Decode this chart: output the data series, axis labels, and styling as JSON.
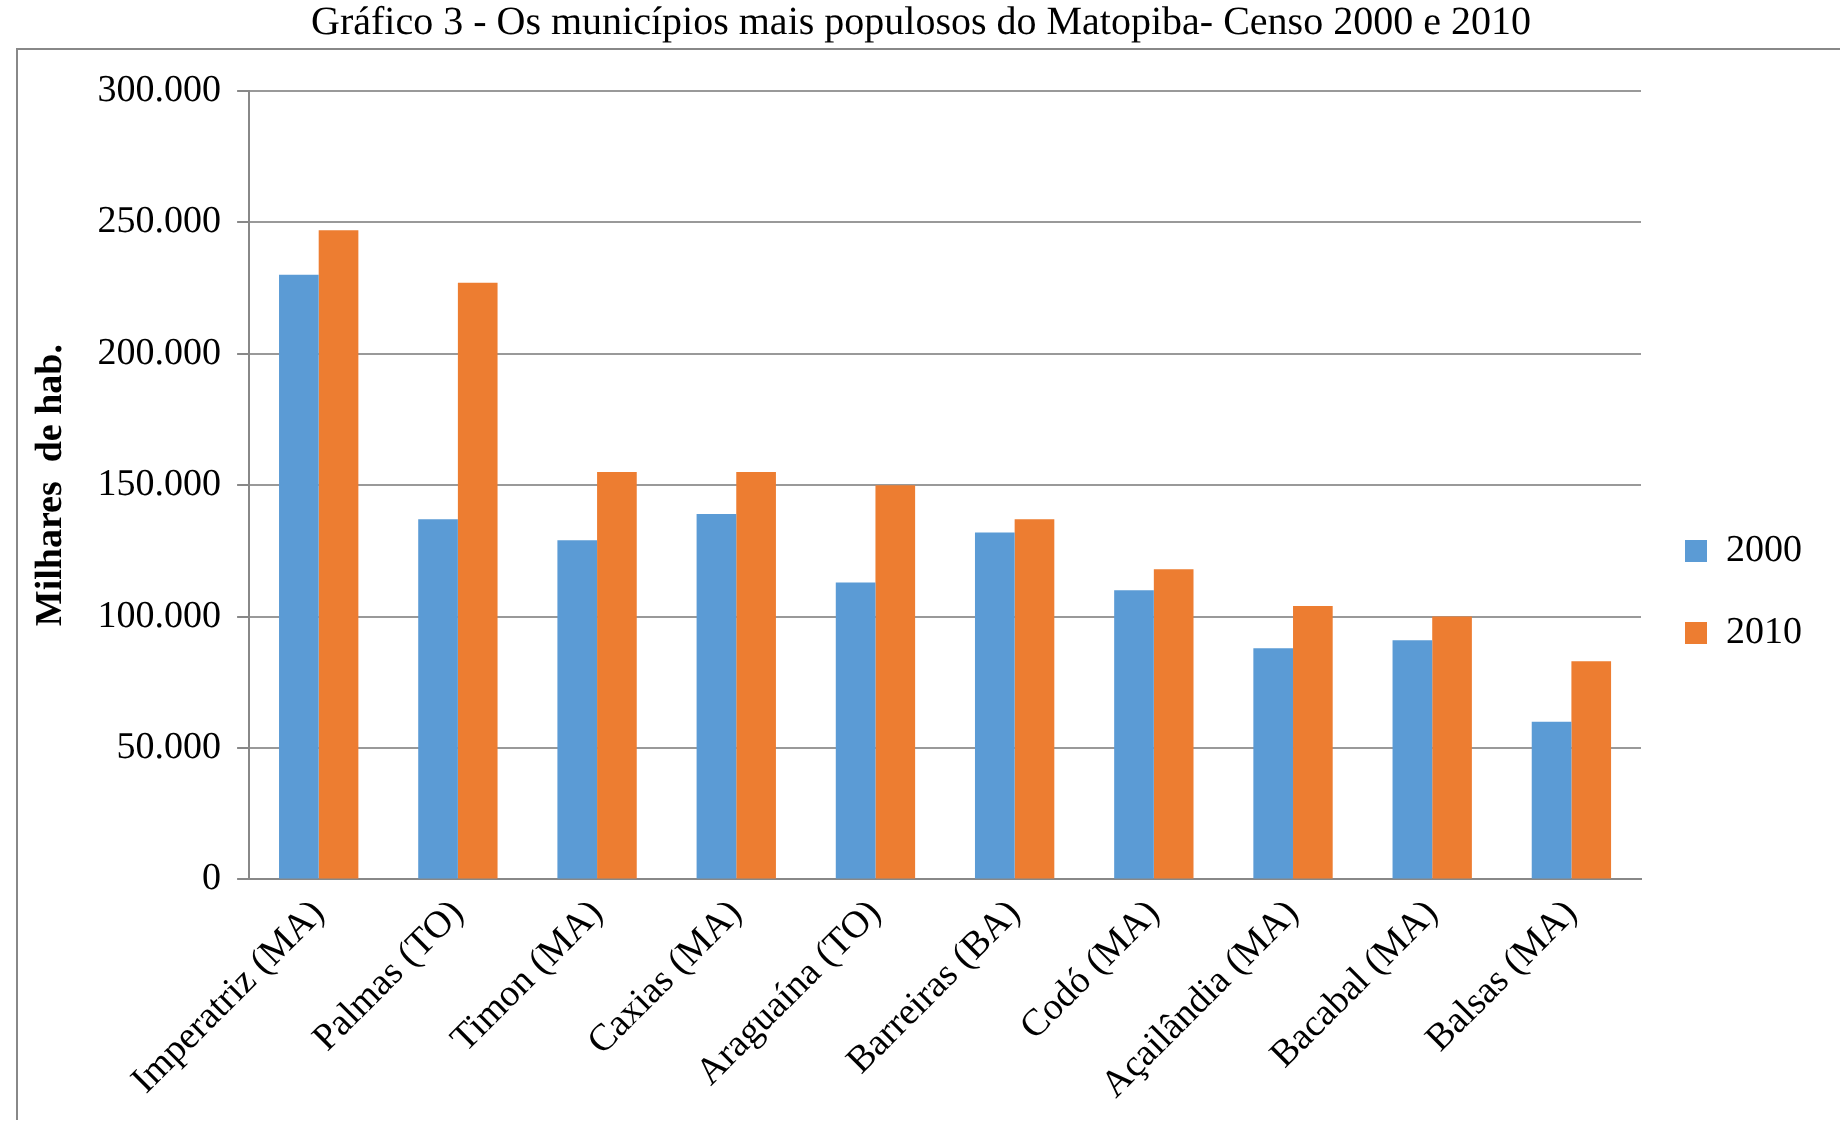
{
  "chart_data": {
    "type": "bar",
    "title": "Gráfico 3 - Os municípios mais populosos do Matopiba- Censo 2000 e 2010",
    "ylabel": "Milhares  de hab.",
    "categories": [
      "Imperatriz (MA)",
      "Palmas (TO)",
      "Timon (MA)",
      "Caxias (MA)",
      "Araguaína (TO)",
      "Barreiras (BA)",
      "Codó (MA)",
      "Açailândia (MA)",
      "Bacabal (MA)",
      "Balsas (MA)"
    ],
    "series": [
      {
        "name": "2000",
        "color": "#5b9bd5",
        "values": [
          230000,
          137000,
          129000,
          139000,
          113000,
          132000,
          110000,
          88000,
          91000,
          60000
        ]
      },
      {
        "name": "2010",
        "color": "#ed7d31",
        "values": [
          247000,
          227000,
          155000,
          155000,
          150000,
          137000,
          118000,
          104000,
          100000,
          83000
        ]
      }
    ],
    "ylim": [
      0,
      300000
    ],
    "yticks": [
      {
        "value": 0,
        "label": "0"
      },
      {
        "value": 50000,
        "label": "50.000"
      },
      {
        "value": 100000,
        "label": "100.000"
      },
      {
        "value": 150000,
        "label": "150.000"
      },
      {
        "value": 200000,
        "label": "200.000"
      },
      {
        "value": 250000,
        "label": "250.000"
      },
      {
        "value": 300000,
        "label": "300.000"
      }
    ],
    "grid": "y",
    "legend": "right"
  }
}
